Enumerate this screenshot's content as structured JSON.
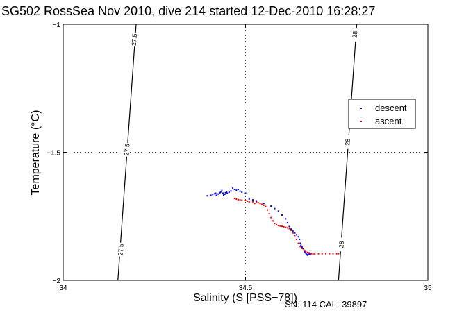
{
  "chart_data": {
    "type": "scatter",
    "title": "SG502 RossSea Nov 2010, dive 214 started 12-Dec-2010 16:28:27",
    "xlabel": "Salinity (S [PSS−78])",
    "ylabel": "Temperature (°C)",
    "xlim": [
      34,
      35
    ],
    "ylim": [
      -2,
      -1
    ],
    "xticks": [
      34,
      34.5,
      35
    ],
    "yticks": [
      -2,
      -1.5,
      -1
    ],
    "xtick_labels": [
      "34",
      "34.5",
      "35"
    ],
    "ytick_labels": [
      "−2",
      "−1.5",
      "−1"
    ],
    "grid": true,
    "legend_position": "top-right",
    "footer": "SN: 114  CAL: 39897",
    "contours": [
      {
        "label": "27.5",
        "points": [
          [
            34.2,
            -1.0
          ],
          [
            34.15,
            -2.0
          ]
        ],
        "label_positions": [
          [
            34.195,
            -1.06
          ],
          [
            34.175,
            -1.49
          ],
          [
            34.158,
            -1.88
          ]
        ]
      },
      {
        "label": "28",
        "points": [
          [
            34.805,
            -1.0
          ],
          [
            34.755,
            -2.0
          ]
        ],
        "label_positions": [
          [
            34.8,
            -1.04
          ],
          [
            34.78,
            -1.46
          ],
          [
            34.763,
            -1.86
          ]
        ]
      }
    ],
    "series": [
      {
        "name": "descent",
        "color": "#0000ff",
        "points": [
          [
            34.395,
            -1.67
          ],
          [
            34.405,
            -1.668
          ],
          [
            34.41,
            -1.665
          ],
          [
            34.415,
            -1.662
          ],
          [
            34.418,
            -1.66
          ],
          [
            34.42,
            -1.668
          ],
          [
            34.425,
            -1.663
          ],
          [
            34.43,
            -1.658
          ],
          [
            34.432,
            -1.655
          ],
          [
            34.435,
            -1.65
          ],
          [
            34.438,
            -1.66
          ],
          [
            34.44,
            -1.667
          ],
          [
            34.443,
            -1.664
          ],
          [
            34.445,
            -1.658
          ],
          [
            34.448,
            -1.656
          ],
          [
            34.45,
            -1.66
          ],
          [
            34.455,
            -1.656
          ],
          [
            34.46,
            -1.651
          ],
          [
            34.465,
            -1.64
          ],
          [
            34.47,
            -1.645
          ],
          [
            34.475,
            -1.648
          ],
          [
            34.48,
            -1.645
          ],
          [
            34.485,
            -1.652
          ],
          [
            34.49,
            -1.656
          ],
          [
            34.5,
            -1.66
          ],
          [
            34.51,
            -1.683
          ],
          [
            34.52,
            -1.686
          ],
          [
            34.53,
            -1.69
          ],
          [
            34.55,
            -1.7
          ],
          [
            34.57,
            -1.71
          ],
          [
            34.58,
            -1.72
          ],
          [
            34.59,
            -1.73
          ],
          [
            34.6,
            -1.745
          ],
          [
            34.61,
            -1.76
          ],
          [
            34.615,
            -1.775
          ],
          [
            34.62,
            -1.79
          ],
          [
            34.625,
            -1.8
          ],
          [
            34.63,
            -1.808
          ],
          [
            34.635,
            -1.815
          ],
          [
            34.64,
            -1.822
          ],
          [
            34.645,
            -1.83
          ],
          [
            34.648,
            -1.84
          ],
          [
            34.65,
            -1.855
          ],
          [
            34.652,
            -1.863
          ],
          [
            34.655,
            -1.87
          ],
          [
            34.657,
            -1.876
          ],
          [
            34.66,
            -1.882
          ],
          [
            34.662,
            -1.888
          ],
          [
            34.664,
            -1.892
          ],
          [
            34.666,
            -1.896
          ],
          [
            34.668,
            -1.899
          ],
          [
            34.67,
            -1.902
          ],
          [
            34.672,
            -1.898
          ],
          [
            34.674,
            -1.893
          ],
          [
            34.676,
            -1.897
          ],
          [
            34.678,
            -1.9
          ],
          [
            34.68,
            -1.896
          ]
        ]
      },
      {
        "name": "ascent",
        "color": "#ff0000",
        "points": [
          [
            34.47,
            -1.68
          ],
          [
            34.475,
            -1.683
          ],
          [
            34.48,
            -1.685
          ],
          [
            34.485,
            -1.686
          ],
          [
            34.49,
            -1.687
          ],
          [
            34.5,
            -1.688
          ],
          [
            34.505,
            -1.691
          ],
          [
            34.51,
            -1.694
          ],
          [
            34.52,
            -1.693
          ],
          [
            34.525,
            -1.7
          ],
          [
            34.53,
            -1.695
          ],
          [
            34.535,
            -1.697
          ],
          [
            34.54,
            -1.7
          ],
          [
            34.545,
            -1.703
          ],
          [
            34.55,
            -1.707
          ],
          [
            34.555,
            -1.712
          ],
          [
            34.56,
            -1.725
          ],
          [
            34.565,
            -1.74
          ],
          [
            34.57,
            -1.755
          ],
          [
            34.575,
            -1.768
          ],
          [
            34.58,
            -1.778
          ],
          [
            34.585,
            -1.783
          ],
          [
            34.59,
            -1.786
          ],
          [
            34.595,
            -1.788
          ],
          [
            34.6,
            -1.789
          ],
          [
            34.605,
            -1.791
          ],
          [
            34.61,
            -1.793
          ],
          [
            34.615,
            -1.795
          ],
          [
            34.62,
            -1.798
          ],
          [
            34.625,
            -1.805
          ],
          [
            34.63,
            -1.815
          ],
          [
            34.635,
            -1.825
          ],
          [
            34.64,
            -1.84
          ],
          [
            34.645,
            -1.855
          ],
          [
            34.65,
            -1.868
          ],
          [
            34.655,
            -1.875
          ],
          [
            34.66,
            -1.882
          ],
          [
            34.665,
            -1.887
          ],
          [
            34.67,
            -1.891
          ],
          [
            34.675,
            -1.894
          ],
          [
            34.68,
            -1.896
          ],
          [
            34.685,
            -1.897
          ],
          [
            34.69,
            -1.897
          ],
          [
            34.7,
            -1.896
          ],
          [
            34.71,
            -1.896
          ],
          [
            34.72,
            -1.896
          ],
          [
            34.73,
            -1.896
          ],
          [
            34.74,
            -1.896
          ],
          [
            34.75,
            -1.896
          ],
          [
            34.755,
            -1.896
          ]
        ]
      }
    ]
  }
}
